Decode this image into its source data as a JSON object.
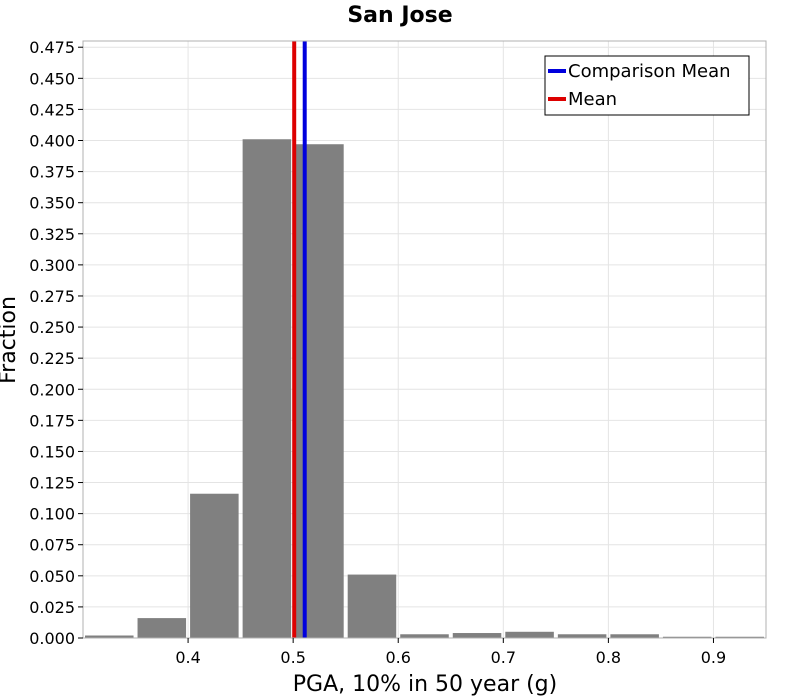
{
  "chart_data": {
    "type": "bar",
    "title": "San Jose",
    "xlabel": "PGA, 10% in 50 year (g)",
    "ylabel": "Fraction",
    "xlim": [
      0.3,
      0.95
    ],
    "ylim": [
      0,
      0.48
    ],
    "x_ticks": [
      "0.4",
      "0.5",
      "0.6",
      "0.7",
      "0.8",
      "0.9"
    ],
    "y_ticks": [
      "0.000",
      "0.025",
      "0.050",
      "0.075",
      "0.100",
      "0.125",
      "0.150",
      "0.175",
      "0.200",
      "0.225",
      "0.250",
      "0.275",
      "0.300",
      "0.325",
      "0.350",
      "0.375",
      "0.400",
      "0.425",
      "0.450",
      "0.475"
    ],
    "bin_width": 0.05,
    "bins": [
      {
        "x": 0.325,
        "value": 0.002
      },
      {
        "x": 0.375,
        "value": 0.016
      },
      {
        "x": 0.425,
        "value": 0.116
      },
      {
        "x": 0.475,
        "value": 0.401
      },
      {
        "x": 0.525,
        "value": 0.397
      },
      {
        "x": 0.575,
        "value": 0.051
      },
      {
        "x": 0.625,
        "value": 0.003
      },
      {
        "x": 0.675,
        "value": 0.004
      },
      {
        "x": 0.725,
        "value": 0.005
      },
      {
        "x": 0.775,
        "value": 0.003
      },
      {
        "x": 0.825,
        "value": 0.003
      },
      {
        "x": 0.875,
        "value": 0.001
      },
      {
        "x": 0.925,
        "value": 0.001
      }
    ],
    "reference_lines": [
      {
        "name": "Comparison Mean",
        "x": 0.511,
        "color": "#0000dd"
      },
      {
        "name": "Mean",
        "x": 0.501,
        "color": "#dd0000"
      }
    ],
    "legend": {
      "position": "top-right",
      "entries": [
        {
          "label": "Comparison Mean",
          "color": "#0000dd"
        },
        {
          "label": "Mean",
          "color": "#dd0000"
        }
      ]
    },
    "grid": true,
    "bar_color": "#808080"
  }
}
